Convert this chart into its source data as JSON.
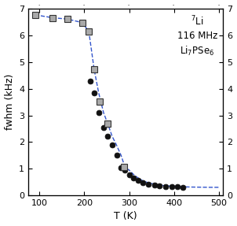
{
  "title_line1": "$^7$Li",
  "title_line2": "116 MHz",
  "title_line3": "Li$_7$PSe$_6$",
  "xlabel": "T (K)",
  "ylabel": "fwhm (kHz)",
  "xlim": [
    75,
    510
  ],
  "ylim": [
    0,
    7
  ],
  "xticks": [
    100,
    200,
    300,
    400,
    500
  ],
  "yticks": [
    0,
    1,
    2,
    3,
    4,
    5,
    6,
    7
  ],
  "filled_circles": [
    [
      213,
      4.3
    ],
    [
      222,
      3.85
    ],
    [
      232,
      3.1
    ],
    [
      243,
      2.55
    ],
    [
      252,
      2.22
    ],
    [
      262,
      1.88
    ],
    [
      272,
      1.5
    ],
    [
      282,
      1.04
    ],
    [
      291,
      0.95
    ],
    [
      300,
      0.78
    ],
    [
      310,
      0.65
    ],
    [
      320,
      0.55
    ],
    [
      330,
      0.47
    ],
    [
      343,
      0.42
    ],
    [
      356,
      0.38
    ],
    [
      368,
      0.36
    ],
    [
      382,
      0.34
    ],
    [
      395,
      0.33
    ],
    [
      408,
      0.32
    ],
    [
      420,
      0.31
    ]
  ],
  "open_squares": [
    [
      90,
      6.78
    ],
    [
      130,
      6.67
    ],
    [
      163,
      6.62
    ],
    [
      195,
      6.49
    ],
    [
      210,
      6.16
    ],
    [
      222,
      4.72
    ],
    [
      235,
      3.52
    ],
    [
      252,
      2.7
    ],
    [
      288,
      1.07
    ]
  ],
  "dashed_line_x": [
    90,
    130,
    163,
    195,
    210,
    222,
    232,
    243,
    252,
    262,
    272,
    282,
    291,
    300,
    310,
    320,
    330,
    343,
    356,
    368,
    382,
    395,
    408,
    420,
    440,
    460,
    480,
    500
  ],
  "dashed_line_y": [
    6.78,
    6.67,
    6.62,
    6.49,
    6.16,
    4.72,
    3.85,
    3.1,
    2.7,
    2.22,
    1.88,
    1.5,
    1.04,
    0.95,
    0.78,
    0.65,
    0.55,
    0.47,
    0.42,
    0.38,
    0.36,
    0.34,
    0.33,
    0.32,
    0.31,
    0.305,
    0.3,
    0.3
  ],
  "line_color": "#3355cc",
  "circle_color": "#111111",
  "square_facecolor": "#aaaaaa",
  "square_edgecolor": "#333333"
}
